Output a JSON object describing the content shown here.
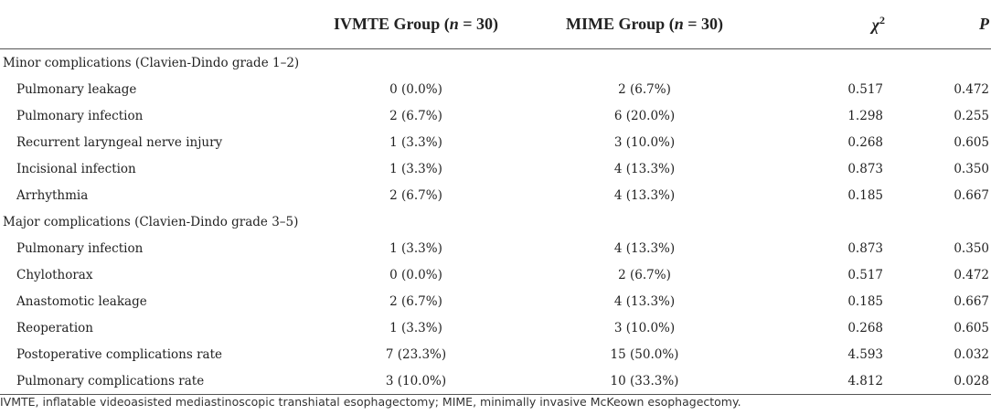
{
  "header": {
    "col0": "",
    "col1_prefix": "IVMTE Group (",
    "col1_n": "n",
    "col1_suffix": " = 30)",
    "col2_prefix": "MIME Group (",
    "col2_n": "n",
    "col2_suffix": " = 30)",
    "col3_base": "χ",
    "col3_sup": "2",
    "col4": "P"
  },
  "sections": [
    {
      "title": "Minor complications (Clavien-Dindo grade 1–2)",
      "rows": [
        {
          "label": "Pulmonary leakage",
          "ivmte": "0 (0.0%)",
          "mime": "2 (6.7%)",
          "chi2": "0.517",
          "p": "0.472"
        },
        {
          "label": "Pulmonary infection",
          "ivmte": "2 (6.7%)",
          "mime": "6 (20.0%)",
          "chi2": "1.298",
          "p": "0.255"
        },
        {
          "label": "Recurrent laryngeal nerve injury",
          "ivmte": "1 (3.3%)",
          "mime": "3 (10.0%)",
          "chi2": "0.268",
          "p": "0.605"
        },
        {
          "label": "Incisional infection",
          "ivmte": "1 (3.3%)",
          "mime": "4 (13.3%)",
          "chi2": "0.873",
          "p": "0.350"
        },
        {
          "label": "Arrhythmia",
          "ivmte": "2 (6.7%)",
          "mime": "4 (13.3%)",
          "chi2": "0.185",
          "p": "0.667"
        }
      ]
    },
    {
      "title": "Major complications (Clavien-Dindo grade 3–5)",
      "rows": [
        {
          "label": "Pulmonary infection",
          "ivmte": "1 (3.3%)",
          "mime": "4 (13.3%)",
          "chi2": "0.873",
          "p": "0.350"
        },
        {
          "label": "Chylothorax",
          "ivmte": "0 (0.0%)",
          "mime": "2 (6.7%)",
          "chi2": "0.517",
          "p": "0.472"
        },
        {
          "label": "Anastomotic leakage",
          "ivmte": "2 (6.7%)",
          "mime": "4 (13.3%)",
          "chi2": "0.185",
          "p": "0.667"
        },
        {
          "label": "Reoperation",
          "ivmte": "1 (3.3%)",
          "mime": "3 (10.0%)",
          "chi2": "0.268",
          "p": "0.605"
        },
        {
          "label": "Postoperative complications rate",
          "ivmte": "7 (23.3%)",
          "mime": "15 (50.0%)",
          "chi2": "4.593",
          "p": "0.032"
        },
        {
          "label": "Pulmonary complications rate",
          "ivmte": "3 (10.0%)",
          "mime": "10 (33.3%)",
          "chi2": "4.812",
          "p": "0.028"
        }
      ]
    }
  ],
  "footnote": "IVMTE, inflatable videoasisted mediastinoscopic transhiatal esophagectomy; MIME, minimally invasive McKeown esophagectomy."
}
